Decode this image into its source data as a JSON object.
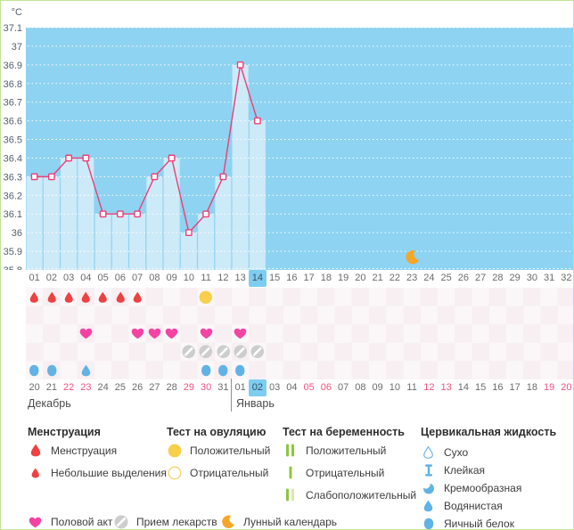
{
  "chart_data": {
    "type": "line",
    "unit": "°C",
    "ylim": [
      35.8,
      37.1
    ],
    "y_tick_labels": [
      "37.1",
      "37",
      "36.9",
      "36.8",
      "36.7",
      "36.6",
      "36.5",
      "36.4",
      "36.3",
      "36.2",
      "36.1",
      "36",
      "35.9",
      "35.8"
    ],
    "x_labels": [
      "01",
      "02",
      "03",
      "04",
      "05",
      "06",
      "07",
      "08",
      "09",
      "10",
      "11",
      "12",
      "13",
      "14",
      "15",
      "16",
      "17",
      "18",
      "19",
      "20",
      "21",
      "22",
      "23",
      "24",
      "25",
      "26",
      "27",
      "28",
      "29",
      "30",
      "31",
      "32"
    ],
    "series": [
      {
        "name": "bbt",
        "values": [
          36.3,
          36.3,
          36.4,
          36.4,
          36.1,
          36.1,
          36.1,
          36.3,
          36.4,
          36.0,
          36.1,
          36.3,
          36.9,
          36.6,
          null,
          null,
          null,
          null,
          null,
          null,
          null,
          null,
          null,
          null,
          null,
          null,
          null,
          null,
          null,
          null,
          null,
          null
        ]
      }
    ],
    "current_day_index": 13,
    "lunar_event_day": 23,
    "grid": "dotted-white-horizontal",
    "legend_position": "bottom"
  },
  "events": {
    "menstruation_days": [
      1,
      2,
      3,
      4,
      5,
      6,
      7
    ],
    "ovulation_test_positive_days": [
      11
    ],
    "pregnancy_test_days": [],
    "intercourse_days": [
      4,
      7,
      8,
      9,
      11,
      13
    ],
    "medication_days": [
      10,
      11,
      12,
      13,
      14
    ],
    "cervical_fluid": [
      {
        "day": 1,
        "type": "egg-white"
      },
      {
        "day": 2,
        "type": "egg-white"
      },
      {
        "day": 4,
        "type": "watery"
      },
      {
        "day": 11,
        "type": "egg-white"
      },
      {
        "day": 12,
        "type": "egg-white"
      },
      {
        "day": 13,
        "type": "egg-white"
      }
    ]
  },
  "calendar": {
    "dates": [
      {
        "label": "20",
        "weekend": false
      },
      {
        "label": "21",
        "weekend": false
      },
      {
        "label": "22",
        "weekend": true
      },
      {
        "label": "23",
        "weekend": true
      },
      {
        "label": "24",
        "weekend": false
      },
      {
        "label": "25",
        "weekend": false
      },
      {
        "label": "26",
        "weekend": false
      },
      {
        "label": "27",
        "weekend": false
      },
      {
        "label": "28",
        "weekend": false
      },
      {
        "label": "29",
        "weekend": true
      },
      {
        "label": "30",
        "weekend": true
      },
      {
        "label": "31",
        "weekend": false
      },
      {
        "label": "01",
        "weekend": false
      },
      {
        "label": "02",
        "weekend": false
      },
      {
        "label": "03",
        "weekend": false
      },
      {
        "label": "04",
        "weekend": false
      },
      {
        "label": "05",
        "weekend": true
      },
      {
        "label": "06",
        "weekend": true
      },
      {
        "label": "07",
        "weekend": false
      },
      {
        "label": "08",
        "weekend": false
      },
      {
        "label": "09",
        "weekend": false
      },
      {
        "label": "10",
        "weekend": false
      },
      {
        "label": "11",
        "weekend": false
      },
      {
        "label": "12",
        "weekend": true
      },
      {
        "label": "13",
        "weekend": true
      },
      {
        "label": "14",
        "weekend": false
      },
      {
        "label": "15",
        "weekend": false
      },
      {
        "label": "16",
        "weekend": false
      },
      {
        "label": "17",
        "weekend": false
      },
      {
        "label": "18",
        "weekend": false
      },
      {
        "label": "19",
        "weekend": true
      },
      {
        "label": "20",
        "weekend": true
      }
    ],
    "january_start_index": 12,
    "current_date_index": 13,
    "month_labels": [
      "Декабрь",
      "Январь"
    ]
  },
  "legend": {
    "sections": [
      {
        "title": "Менструация",
        "items": [
          {
            "icon": "drop-red",
            "label": "Менструация"
          },
          {
            "icon": "drop-red-sm",
            "label": "Небольшие выделения"
          }
        ]
      },
      {
        "title": "Тест на овуляцию",
        "items": [
          {
            "icon": "circle-yellow",
            "label": "Положительный"
          },
          {
            "icon": "circle-yellow-outline",
            "label": "Отрицательный"
          }
        ]
      },
      {
        "title": "Тест на беременность",
        "items": [
          {
            "icon": "test-two-bars",
            "label": "Положительный"
          },
          {
            "icon": "test-one-bar",
            "label": "Отрицательный"
          },
          {
            "icon": "test-weak-bars",
            "label": "Слабоположительный"
          }
        ]
      },
      {
        "title": "Цервикальная жидкость",
        "items": [
          {
            "icon": "cf-dry",
            "label": "Сухо"
          },
          {
            "icon": "cf-sticky",
            "label": "Клейкая"
          },
          {
            "icon": "cf-creamy",
            "label": "Кремообразная"
          },
          {
            "icon": "cf-watery",
            "label": "Водянистая"
          },
          {
            "icon": "cf-eggwhite",
            "label": "Яичный белок"
          }
        ]
      }
    ],
    "extra_items": [
      {
        "icon": "heart",
        "label": "Половой акт"
      },
      {
        "icon": "pill",
        "label": "Прием лекарств"
      },
      {
        "icon": "moon",
        "label": "Лунный календарь"
      }
    ]
  },
  "colors": {
    "border": "#c2e29b",
    "plot_bg": "#8ed3f1",
    "bar_fill": "#cdeaf9",
    "grid": "#ffffff",
    "line": "#ee3d73",
    "marker_fill": "#ffffff",
    "axis_text": "#51606b",
    "highlight": "#7dcdf0",
    "weekend_text": "#f2517f",
    "menstruation": "#ee4141",
    "ovulation": "#f8cf4b",
    "heart": "#f443a3",
    "pill": "#cdcdcd",
    "cervical": "#61b2e7",
    "preg_green": "#8dc63f",
    "preg_pale": "#d6e7b2",
    "moon": "#f7a625"
  }
}
